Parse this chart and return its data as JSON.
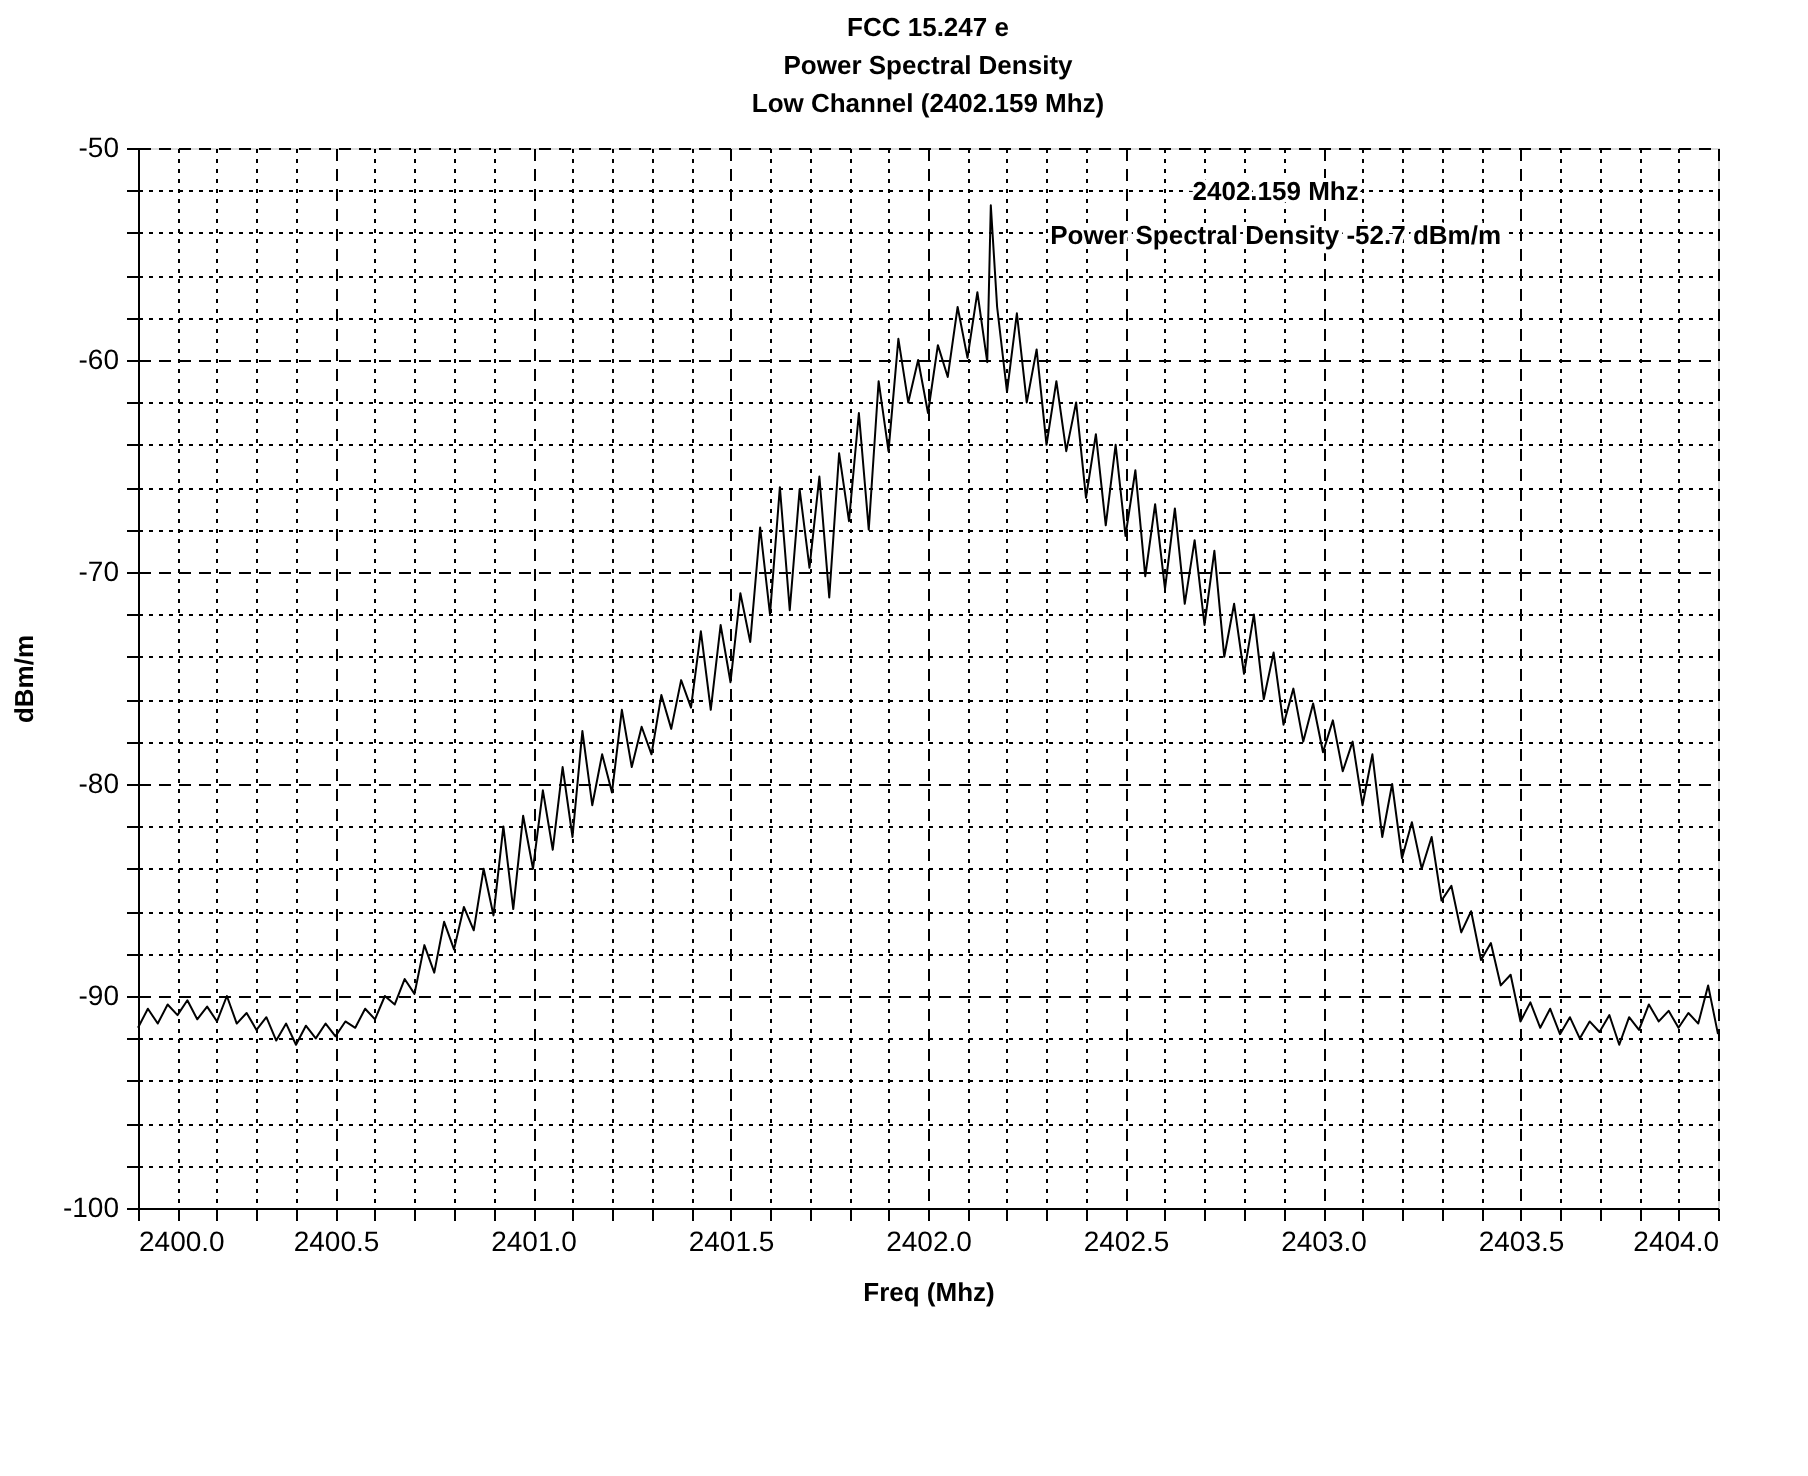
{
  "chart_data": {
    "type": "line",
    "title": "FCC 15.247 e\nPower Spectral Density\nLow Channel (2402.159 Mhz)",
    "xlabel": "Freq (Mhz)",
    "ylabel": "dBm/m",
    "annotations": [
      "2402.159 Mhz",
      "Power Spectral Density  -52.7 dBm/m"
    ],
    "x": [
      2400.0,
      2400.025,
      2400.05,
      2400.075,
      2400.1,
      2400.125,
      2400.15,
      2400.175,
      2400.2,
      2400.225,
      2400.25,
      2400.275,
      2400.3,
      2400.325,
      2400.35,
      2400.375,
      2400.4,
      2400.425,
      2400.45,
      2400.475,
      2400.5,
      2400.525,
      2400.55,
      2400.575,
      2400.6,
      2400.625,
      2400.65,
      2400.675,
      2400.7,
      2400.725,
      2400.75,
      2400.775,
      2400.8,
      2400.825,
      2400.85,
      2400.875,
      2400.9,
      2400.925,
      2400.95,
      2400.975,
      2401.0,
      2401.025,
      2401.05,
      2401.075,
      2401.1,
      2401.125,
      2401.15,
      2401.175,
      2401.2,
      2401.225,
      2401.25,
      2401.275,
      2401.3,
      2401.325,
      2401.35,
      2401.375,
      2401.4,
      2401.425,
      2401.45,
      2401.475,
      2401.5,
      2401.525,
      2401.55,
      2401.575,
      2401.6,
      2401.625,
      2401.65,
      2401.675,
      2401.7,
      2401.725,
      2401.75,
      2401.775,
      2401.8,
      2401.825,
      2401.85,
      2401.875,
      2401.9,
      2401.925,
      2401.95,
      2401.975,
      2402.0,
      2402.025,
      2402.05,
      2402.075,
      2402.1,
      2402.125,
      2402.15,
      2402.159,
      2402.175,
      2402.2,
      2402.225,
      2402.25,
      2402.275,
      2402.3,
      2402.325,
      2402.35,
      2402.375,
      2402.4,
      2402.425,
      2402.45,
      2402.475,
      2402.5,
      2402.525,
      2402.55,
      2402.575,
      2402.6,
      2402.625,
      2402.65,
      2402.675,
      2402.7,
      2402.725,
      2402.75,
      2402.775,
      2402.8,
      2402.825,
      2402.85,
      2402.875,
      2402.9,
      2402.925,
      2402.95,
      2402.975,
      2403.0,
      2403.025,
      2403.05,
      2403.075,
      2403.1,
      2403.125,
      2403.15,
      2403.175,
      2403.2,
      2403.225,
      2403.25,
      2403.275,
      2403.3,
      2403.325,
      2403.35,
      2403.375,
      2403.4,
      2403.425,
      2403.45,
      2403.475,
      2403.5,
      2403.525,
      2403.55,
      2403.575,
      2403.6,
      2403.625,
      2403.65,
      2403.675,
      2403.7,
      2403.725,
      2403.75,
      2403.775,
      2403.8,
      2403.825,
      2403.85,
      2403.875,
      2403.9,
      2403.925,
      2403.95,
      2403.975,
      2404.0
    ],
    "series": [
      {
        "color": "#000000",
        "values": [
          -91.5,
          -90.6,
          -91.3,
          -90.4,
          -90.9,
          -90.2,
          -91.1,
          -90.5,
          -91.2,
          -90.0,
          -91.3,
          -90.8,
          -91.6,
          -91.0,
          -92.1,
          -91.3,
          -92.3,
          -91.4,
          -92.0,
          -91.3,
          -91.9,
          -91.2,
          -91.5,
          -90.6,
          -91.1,
          -90.0,
          -90.4,
          -89.2,
          -89.9,
          -87.6,
          -88.9,
          -86.5,
          -87.8,
          -85.8,
          -86.9,
          -84.0,
          -86.2,
          -82.0,
          -85.9,
          -81.5,
          -84.0,
          -80.3,
          -83.1,
          -79.2,
          -82.5,
          -77.5,
          -81.0,
          -78.6,
          -80.4,
          -76.5,
          -79.2,
          -77.3,
          -78.6,
          -75.8,
          -77.4,
          -75.1,
          -76.4,
          -72.8,
          -76.5,
          -72.5,
          -75.2,
          -71.0,
          -73.3,
          -67.9,
          -72.0,
          -66.0,
          -71.8,
          -66.1,
          -69.8,
          -65.5,
          -71.2,
          -64.4,
          -67.6,
          -62.5,
          -68.0,
          -61.0,
          -64.3,
          -59.0,
          -62.0,
          -60.0,
          -62.5,
          -59.3,
          -60.8,
          -57.5,
          -59.9,
          -56.8,
          -60.1,
          -52.7,
          -57.5,
          -61.5,
          -57.8,
          -62.0,
          -59.5,
          -64.0,
          -61.0,
          -64.3,
          -62.0,
          -66.5,
          -63.5,
          -67.8,
          -64.0,
          -68.3,
          -65.2,
          -70.2,
          -66.8,
          -70.8,
          -67.0,
          -71.5,
          -68.5,
          -72.5,
          -69.0,
          -74.0,
          -71.5,
          -74.8,
          -72.0,
          -76.0,
          -73.8,
          -77.2,
          -75.5,
          -78.0,
          -76.2,
          -78.5,
          -77.0,
          -79.4,
          -78.0,
          -81.0,
          -78.6,
          -82.5,
          -80.0,
          -83.5,
          -81.8,
          -84.0,
          -82.5,
          -85.5,
          -84.8,
          -87.0,
          -86.0,
          -88.3,
          -87.5,
          -89.5,
          -89.0,
          -91.2,
          -90.3,
          -91.5,
          -90.6,
          -91.8,
          -91.0,
          -92.0,
          -91.2,
          -91.7,
          -90.9,
          -92.3,
          -91.0,
          -91.6,
          -90.4,
          -91.2,
          -90.7,
          -91.5,
          -90.8,
          -91.3,
          -89.5,
          -91.8
        ]
      }
    ],
    "xlim": [
      2400.0,
      2404.0
    ],
    "xticks": [
      {
        "value": 2400.0,
        "label": "2400.0"
      },
      {
        "value": 2400.1,
        "label": null
      },
      {
        "value": 2400.2,
        "label": null
      },
      {
        "value": 2400.3,
        "label": null
      },
      {
        "value": 2400.4,
        "label": null
      },
      {
        "value": 2400.5,
        "label": "2400.5"
      },
      {
        "value": 2400.6,
        "label": null
      },
      {
        "value": 2400.7,
        "label": null
      },
      {
        "value": 2400.8,
        "label": null
      },
      {
        "value": 2400.9,
        "label": null
      },
      {
        "value": 2401.0,
        "label": "2401.0"
      },
      {
        "value": 2401.1,
        "label": null
      },
      {
        "value": 2401.2,
        "label": null
      },
      {
        "value": 2401.3,
        "label": null
      },
      {
        "value": 2401.4,
        "label": null
      },
      {
        "value": 2401.5,
        "label": "2401.5"
      },
      {
        "value": 2401.6,
        "label": null
      },
      {
        "value": 2401.7,
        "label": null
      },
      {
        "value": 2401.8,
        "label": null
      },
      {
        "value": 2401.9,
        "label": null
      },
      {
        "value": 2402.0,
        "label": "2402.0"
      },
      {
        "value": 2402.1,
        "label": null
      },
      {
        "value": 2402.2,
        "label": null
      },
      {
        "value": 2402.3,
        "label": null
      },
      {
        "value": 2402.4,
        "label": null
      },
      {
        "value": 2402.5,
        "label": "2402.5"
      },
      {
        "value": 2402.6,
        "label": null
      },
      {
        "value": 2402.7,
        "label": null
      },
      {
        "value": 2402.8,
        "label": null
      },
      {
        "value": 2402.9,
        "label": null
      },
      {
        "value": 2403.0,
        "label": "2403.0"
      },
      {
        "value": 2403.1,
        "label": null
      },
      {
        "value": 2403.2,
        "label": null
      },
      {
        "value": 2403.3,
        "label": null
      },
      {
        "value": 2403.4,
        "label": null
      },
      {
        "value": 2403.5,
        "label": "2403.5"
      },
      {
        "value": 2403.6,
        "label": null
      },
      {
        "value": 2403.7,
        "label": null
      },
      {
        "value": 2403.8,
        "label": null
      },
      {
        "value": 2403.9,
        "label": null
      },
      {
        "value": 2404.0,
        "label": "2404.0"
      }
    ],
    "ylim": [
      -100,
      -50
    ],
    "yticks": [
      -100,
      {
        "value": -98,
        "label": null
      },
      {
        "value": -96,
        "label": null
      },
      {
        "value": -94,
        "label": null
      },
      {
        "value": -92,
        "label": null
      },
      -90,
      {
        "value": -88,
        "label": null
      },
      {
        "value": -86,
        "label": null
      },
      {
        "value": -84,
        "label": null
      },
      {
        "value": -82,
        "label": null
      },
      -80,
      {
        "value": -78,
        "label": null
      },
      {
        "value": -76,
        "label": null
      },
      {
        "value": -74,
        "label": null
      },
      {
        "value": -72,
        "label": null
      },
      -70,
      {
        "value": -68,
        "label": null
      },
      {
        "value": -66,
        "label": null
      },
      {
        "value": -64,
        "label": null
      },
      {
        "value": -62,
        "label": null
      },
      -60,
      {
        "value": -58,
        "label": null
      },
      {
        "value": -56,
        "label": null
      },
      {
        "value": -54,
        "label": null
      },
      {
        "value": -52,
        "label": null
      },
      -50
    ],
    "grid": true,
    "marker": "none",
    "line_style": "solid"
  }
}
